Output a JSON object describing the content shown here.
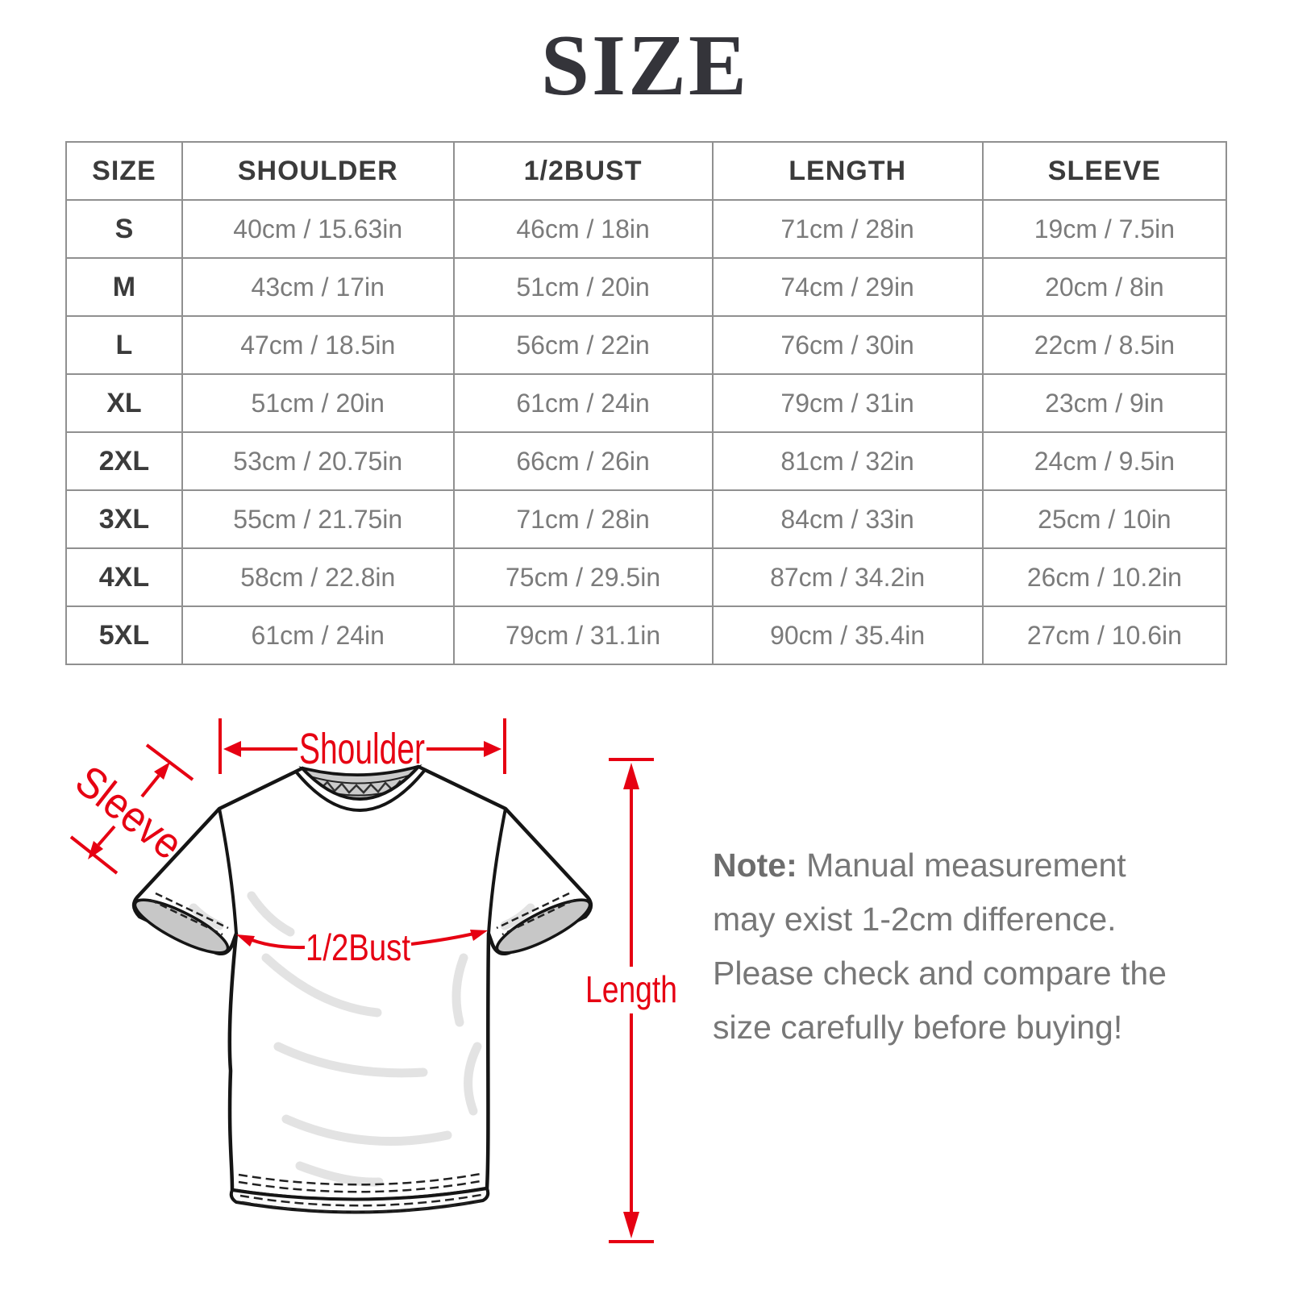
{
  "title": "SIZE",
  "table": {
    "headers": [
      "SIZE",
      "SHOULDER",
      "1/2BUST",
      "LENGTH",
      "SLEEVE"
    ],
    "rows": [
      {
        "size": "S",
        "shoulder": "40cm / 15.63in",
        "bust": "46cm / 18in",
        "length": "71cm / 28in",
        "sleeve": "19cm / 7.5in"
      },
      {
        "size": "M",
        "shoulder": "43cm / 17in",
        "bust": "51cm / 20in",
        "length": "74cm / 29in",
        "sleeve": "20cm / 8in"
      },
      {
        "size": "L",
        "shoulder": "47cm / 18.5in",
        "bust": "56cm / 22in",
        "length": "76cm / 30in",
        "sleeve": "22cm / 8.5in"
      },
      {
        "size": "XL",
        "shoulder": "51cm / 20in",
        "bust": "61cm / 24in",
        "length": "79cm / 31in",
        "sleeve": "23cm / 9in"
      },
      {
        "size": "2XL",
        "shoulder": "53cm / 20.75in",
        "bust": "66cm / 26in",
        "length": "81cm / 32in",
        "sleeve": "24cm / 9.5in"
      },
      {
        "size": "3XL",
        "shoulder": "55cm / 21.75in",
        "bust": "71cm / 28in",
        "length": "84cm / 33in",
        "sleeve": "25cm / 10in"
      },
      {
        "size": "4XL",
        "shoulder": "58cm / 22.8in",
        "bust": "75cm / 29.5in",
        "length": "87cm / 34.2in",
        "sleeve": "26cm / 10.2in"
      },
      {
        "size": "5XL",
        "shoulder": "61cm / 24in",
        "bust": "79cm / 31.1in",
        "length": "90cm / 35.4in",
        "sleeve": "27cm / 10.6in"
      }
    ]
  },
  "diagram": {
    "labels": {
      "shoulder": "Shoulder",
      "sleeve": "Sleeve",
      "bust": "1/2Bust",
      "length": "Length"
    },
    "accent_color": "#e60012"
  },
  "note": {
    "label": "Note:",
    "text": " Manual measurement may exist 1-2cm difference. Please check and compare the size carefully before buying!"
  }
}
